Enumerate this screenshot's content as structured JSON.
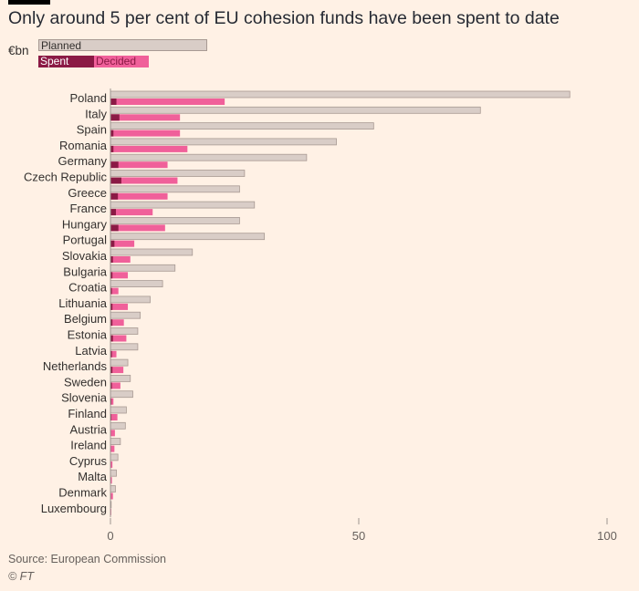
{
  "header": {
    "title": "Only around 5 per cent of EU cohesion funds have been spent to date",
    "unit": "€bn"
  },
  "legend": {
    "planned": "Planned",
    "spent": "Spent",
    "decided": "Decided"
  },
  "colors": {
    "background": "#fff1e5",
    "planned": "#d9cdc7",
    "planned_border": "#a89a93",
    "decided": "#f0609a",
    "spent": "#8b1a45",
    "axis": "#9e9590"
  },
  "chart_data": {
    "type": "bar",
    "orientation": "horizontal",
    "title": "Only around 5 per cent of EU cohesion funds have been spent to date",
    "xlabel": "",
    "ylabel": "€bn",
    "xlim": [
      0,
      100
    ],
    "xticks": [
      0,
      50,
      100
    ],
    "categories": [
      "Poland",
      "Italy",
      "Spain",
      "Romania",
      "Germany",
      "Czech Republic",
      "Greece",
      "France",
      "Hungary",
      "Portugal",
      "Slovakia",
      "Bulgaria",
      "Croatia",
      "Lithuania",
      "Belgium",
      "Estonia",
      "Latvia",
      "Netherlands",
      "Sweden",
      "Slovenia",
      "Finland",
      "Austria",
      "Ireland",
      "Cyprus",
      "Malta",
      "Denmark",
      "Luxembourg"
    ],
    "series": [
      {
        "name": "Planned",
        "values": [
          92.5,
          74.5,
          53,
          45.5,
          39.5,
          27,
          26,
          29,
          26,
          31,
          16.5,
          13,
          10.5,
          8,
          6,
          5.5,
          5.5,
          3.5,
          4,
          4.5,
          3.2,
          3,
          2,
          1.5,
          1.2,
          1,
          0.1
        ]
      },
      {
        "name": "Decided",
        "values": [
          23,
          14,
          14,
          15.5,
          11.5,
          13.5,
          11.5,
          8.5,
          11,
          4.8,
          4,
          3.5,
          1.6,
          3.5,
          2.7,
          3.2,
          1.2,
          2.6,
          2,
          0.6,
          1.4,
          0.9,
          0.8,
          0.4,
          0.3,
          0.5,
          0.1
        ]
      },
      {
        "name": "Spent",
        "values": [
          1.2,
          1.8,
          0.6,
          0.6,
          1.6,
          2.2,
          1.5,
          1.1,
          1.6,
          0.8,
          0.5,
          0.4,
          0.3,
          0.4,
          0.4,
          0.5,
          0.3,
          0.4,
          0.3,
          0.2,
          0.2,
          0.1,
          0.1,
          0.1,
          0.1,
          0.1,
          0.05
        ]
      }
    ]
  },
  "footer": {
    "source": "Source: European Commission",
    "credit": "© FT"
  }
}
